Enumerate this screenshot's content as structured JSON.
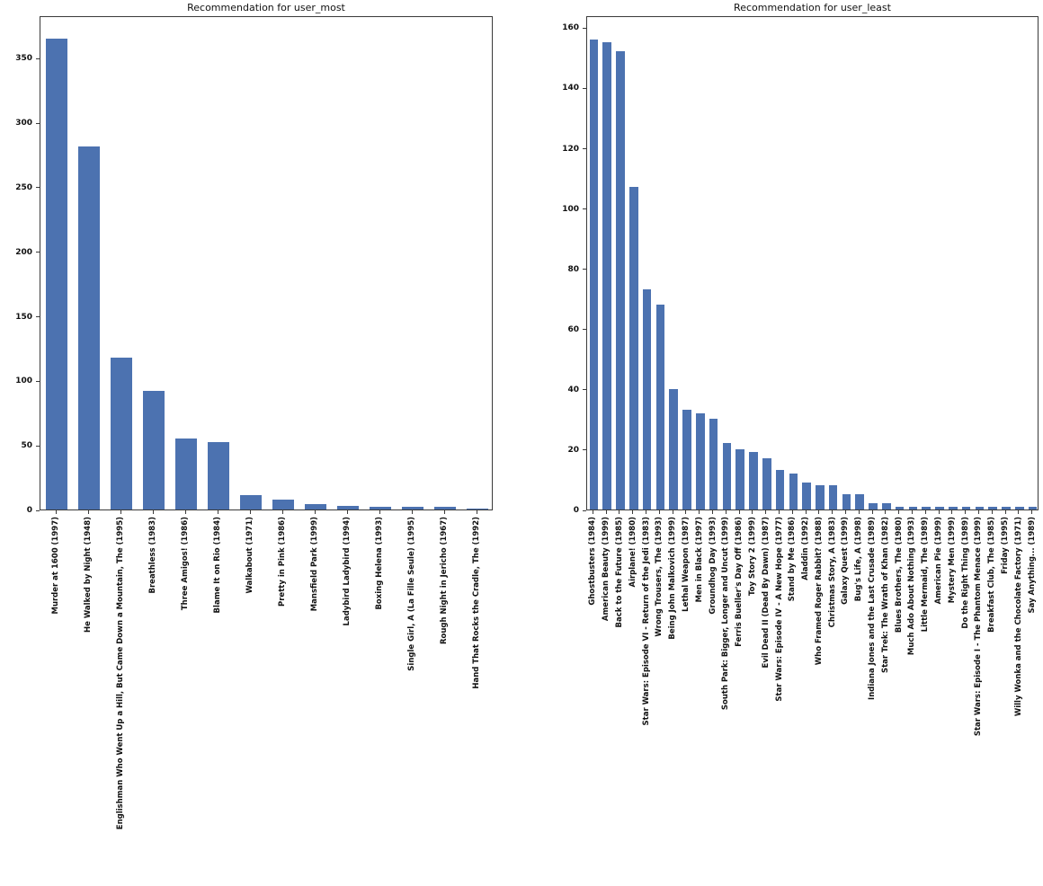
{
  "style": {
    "bar_color": "#4C72B0",
    "background_color": "#ffffff",
    "axis_color": "#3a3a3a",
    "text_color": "#111111"
  },
  "chart_data": [
    {
      "type": "bar",
      "title": "Recommendation for user_most",
      "xlabel": "",
      "ylabel": "",
      "grid": false,
      "legend": "none",
      "ylim": [
        0,
        383
      ],
      "yticks": [
        0,
        50,
        100,
        150,
        200,
        250,
        300,
        350
      ],
      "categories": [
        "Murder at 1600 (1997)",
        "He Walked by Night (1948)",
        "Englishman Who Went Up a Hill, But Came Down a Mountain, The (1995)",
        "Breathless (1983)",
        "Three Amigos! (1986)",
        "Blame It on Rio (1984)",
        "Walkabout (1971)",
        "Pretty in Pink (1986)",
        "Mansfield Park (1999)",
        "Ladybird Ladybird (1994)",
        "Boxing Helena (1993)",
        "Single Girl, A (La Fille Seule) (1995)",
        "Rough Night in Jericho (1967)",
        "Hand That Rocks the Cradle, The (1992)"
      ],
      "values": [
        365,
        281,
        118,
        92,
        55,
        52,
        11,
        8,
        4,
        3,
        2,
        2,
        2,
        1
      ]
    },
    {
      "type": "bar",
      "title": "Recommendation for user_least",
      "xlabel": "",
      "ylabel": "",
      "grid": false,
      "legend": "none",
      "ylim": [
        0,
        164
      ],
      "yticks": [
        0,
        20,
        40,
        60,
        80,
        100,
        120,
        140,
        160
      ],
      "categories": [
        "Ghostbusters (1984)",
        "American Beauty (1999)",
        "Back to the Future (1985)",
        "Airplane! (1980)",
        "Star Wars: Episode VI - Return of the Jedi (1983)",
        "Wrong Trousers, The (1993)",
        "Being John Malkovich (1999)",
        "Lethal Weapon (1987)",
        "Men in Black (1997)",
        "Groundhog Day (1993)",
        "South Park: Bigger, Longer and Uncut (1999)",
        "Ferris Bueller's Day Off (1986)",
        "Toy Story 2 (1999)",
        "Evil Dead II (Dead By Dawn) (1987)",
        "Star Wars: Episode IV - A New Hope (1977)",
        "Stand by Me (1986)",
        "Aladdin (1992)",
        "Who Framed Roger Rabbit? (1988)",
        "Christmas Story, A (1983)",
        "Galaxy Quest (1999)",
        "Bug's Life, A (1998)",
        "Indiana Jones and the Last Crusade (1989)",
        "Star Trek: The Wrath of Khan (1982)",
        "Blues Brothers, The (1980)",
        "Much Ado About Nothing (1993)",
        "Little Mermaid, The (1989)",
        "American Pie (1999)",
        "Mystery Men (1999)",
        "Do the Right Thing (1989)",
        "Star Wars: Episode I - The Phantom Menace (1999)",
        "Breakfast Club, The (1985)",
        "Friday (1995)",
        "Willy Wonka and the Chocolate Factory (1971)",
        "Say Anything... (1989)"
      ],
      "values": [
        156,
        155,
        152,
        107,
        73,
        68,
        40,
        33,
        32,
        30,
        22,
        20,
        19,
        17,
        13,
        12,
        9,
        8,
        8,
        5,
        5,
        2,
        2,
        1,
        1,
        1,
        1,
        1,
        1,
        1,
        1,
        1,
        1,
        1
      ]
    }
  ]
}
